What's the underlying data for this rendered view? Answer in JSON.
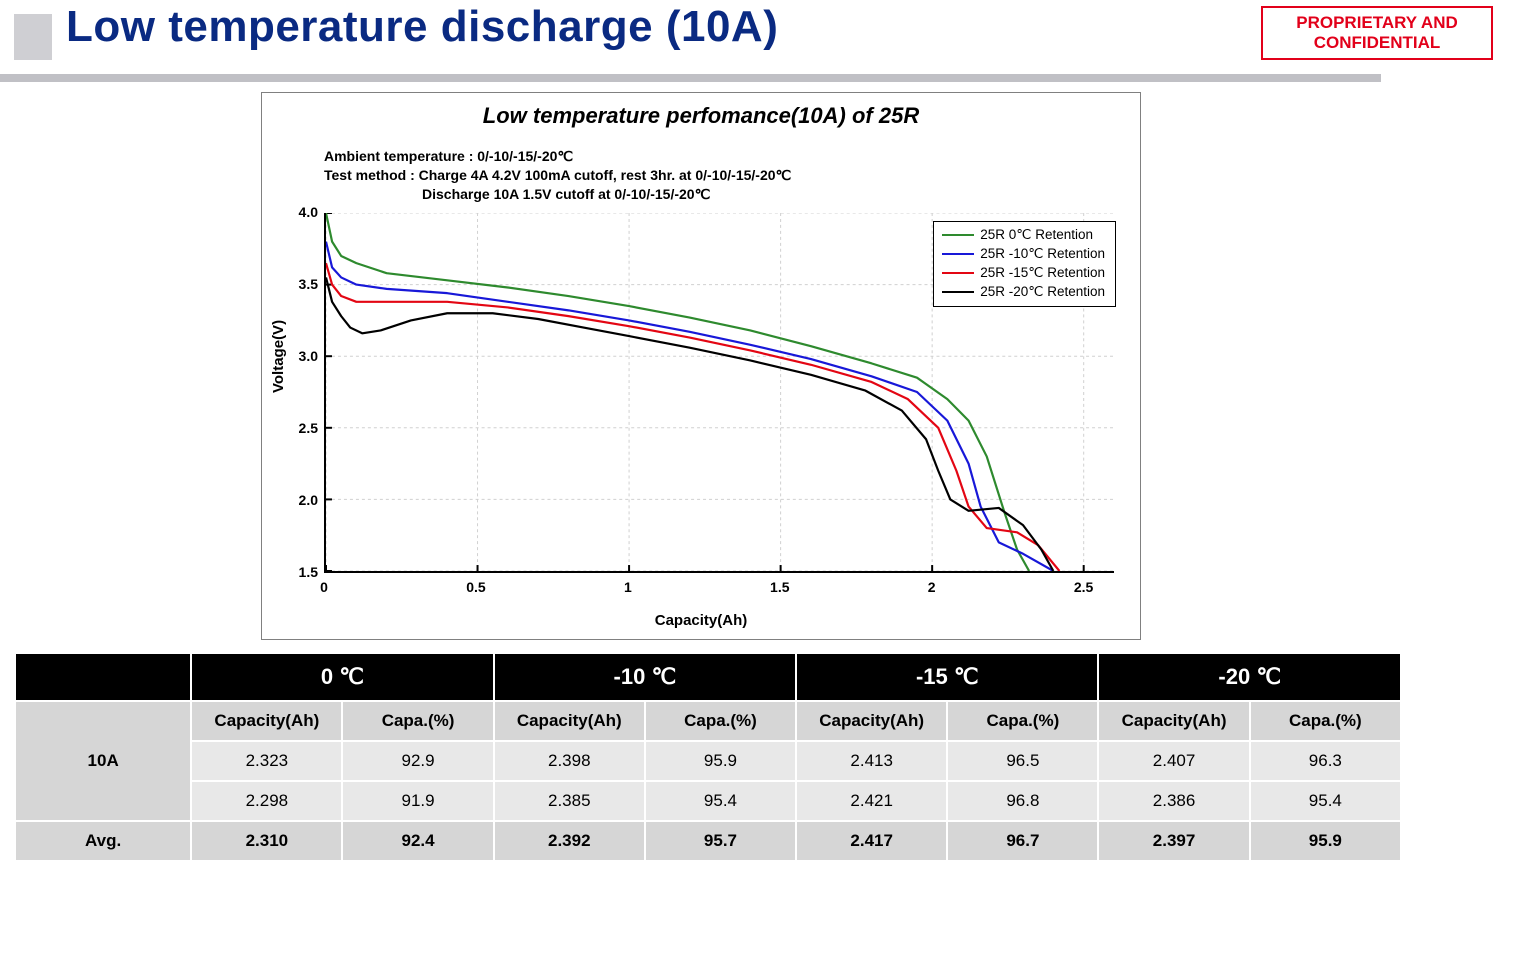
{
  "header": {
    "title": "Low temperature discharge (10A)",
    "confidential": "PROPRIETARY AND CONFIDENTIAL",
    "accent_color": "#0a2a82",
    "confidential_color": "#e2001a"
  },
  "chart": {
    "type": "line",
    "title": "Low temperature perfomance(10A) of 25R",
    "note_line1": "Ambient temperature : 0/-10/-15/-20℃",
    "note_line2": "Test method : Charge 4A 4.2V 100mA cutoff, rest 3hr. at 0/-10/-15/-20℃",
    "note_line3": "Discharge 10A 1.5V cutoff at 0/-10/-15/-20℃",
    "xlabel": "Capacity(Ah)",
    "ylabel": "Voltage(V)",
    "xlim": [
      0,
      2.6
    ],
    "ylim": [
      1.5,
      4.0
    ],
    "xticks": [
      0,
      0.5,
      1,
      1.5,
      2,
      2.5
    ],
    "yticks": [
      1.5,
      2.0,
      2.5,
      3.0,
      3.5,
      4.0
    ],
    "grid_color": "#d0d0d0",
    "axis_color": "#000000",
    "background_color": "#ffffff",
    "line_width": 2.2,
    "title_fontsize": 22,
    "label_fontsize": 15,
    "tick_fontsize": 14,
    "legend_border": "#000000",
    "series": [
      {
        "label": "25R 0℃ Retention",
        "color": "#2e8a2e",
        "points": [
          [
            0.0,
            4.0
          ],
          [
            0.02,
            3.8
          ],
          [
            0.05,
            3.7
          ],
          [
            0.1,
            3.65
          ],
          [
            0.2,
            3.58
          ],
          [
            0.4,
            3.53
          ],
          [
            0.6,
            3.48
          ],
          [
            0.8,
            3.42
          ],
          [
            1.0,
            3.35
          ],
          [
            1.2,
            3.27
          ],
          [
            1.4,
            3.18
          ],
          [
            1.6,
            3.07
          ],
          [
            1.8,
            2.95
          ],
          [
            1.95,
            2.85
          ],
          [
            2.05,
            2.7
          ],
          [
            2.12,
            2.55
          ],
          [
            2.18,
            2.3
          ],
          [
            2.24,
            1.9
          ],
          [
            2.28,
            1.65
          ],
          [
            2.32,
            1.5
          ]
        ]
      },
      {
        "label": "25R -10℃ Retention",
        "color": "#1818d8",
        "points": [
          [
            0.0,
            3.8
          ],
          [
            0.02,
            3.62
          ],
          [
            0.05,
            3.55
          ],
          [
            0.1,
            3.5
          ],
          [
            0.2,
            3.47
          ],
          [
            0.4,
            3.44
          ],
          [
            0.6,
            3.38
          ],
          [
            0.8,
            3.32
          ],
          [
            1.0,
            3.25
          ],
          [
            1.2,
            3.17
          ],
          [
            1.4,
            3.08
          ],
          [
            1.6,
            2.98
          ],
          [
            1.8,
            2.86
          ],
          [
            1.95,
            2.75
          ],
          [
            2.05,
            2.55
          ],
          [
            2.12,
            2.25
          ],
          [
            2.16,
            1.95
          ],
          [
            2.22,
            1.7
          ],
          [
            2.3,
            1.62
          ],
          [
            2.4,
            1.5
          ]
        ]
      },
      {
        "label": "25R -15℃ Retention",
        "color": "#e30613",
        "points": [
          [
            0.0,
            3.65
          ],
          [
            0.02,
            3.5
          ],
          [
            0.05,
            3.42
          ],
          [
            0.1,
            3.38
          ],
          [
            0.2,
            3.38
          ],
          [
            0.4,
            3.38
          ],
          [
            0.6,
            3.34
          ],
          [
            0.8,
            3.28
          ],
          [
            1.0,
            3.21
          ],
          [
            1.2,
            3.13
          ],
          [
            1.4,
            3.04
          ],
          [
            1.6,
            2.94
          ],
          [
            1.8,
            2.82
          ],
          [
            1.92,
            2.7
          ],
          [
            2.02,
            2.5
          ],
          [
            2.08,
            2.2
          ],
          [
            2.12,
            1.95
          ],
          [
            2.18,
            1.8
          ],
          [
            2.28,
            1.77
          ],
          [
            2.35,
            1.68
          ],
          [
            2.42,
            1.5
          ]
        ]
      },
      {
        "label": "25R -20℃ Retention",
        "color": "#000000",
        "points": [
          [
            0.0,
            3.55
          ],
          [
            0.02,
            3.38
          ],
          [
            0.05,
            3.28
          ],
          [
            0.08,
            3.2
          ],
          [
            0.12,
            3.16
          ],
          [
            0.18,
            3.18
          ],
          [
            0.28,
            3.25
          ],
          [
            0.4,
            3.3
          ],
          [
            0.55,
            3.3
          ],
          [
            0.7,
            3.26
          ],
          [
            0.85,
            3.2
          ],
          [
            1.0,
            3.14
          ],
          [
            1.2,
            3.06
          ],
          [
            1.4,
            2.97
          ],
          [
            1.6,
            2.87
          ],
          [
            1.78,
            2.76
          ],
          [
            1.9,
            2.62
          ],
          [
            1.98,
            2.42
          ],
          [
            2.02,
            2.2
          ],
          [
            2.06,
            2.0
          ],
          [
            2.12,
            1.92
          ],
          [
            2.22,
            1.94
          ],
          [
            2.3,
            1.82
          ],
          [
            2.36,
            1.65
          ],
          [
            2.4,
            1.5
          ]
        ]
      }
    ]
  },
  "table": {
    "row_label": "10A",
    "avg_label": "Avg.",
    "temps": [
      "0 ℃",
      "-10 ℃",
      "-15 ℃",
      "-20 ℃"
    ],
    "sub_headers": [
      "Capacity(Ah)",
      "Capa.(%)"
    ],
    "rows": [
      [
        "2.323",
        "92.9",
        "2.398",
        "95.9",
        "2.413",
        "96.5",
        "2.407",
        "96.3"
      ],
      [
        "2.298",
        "91.9",
        "2.385",
        "95.4",
        "2.421",
        "96.8",
        "2.386",
        "95.4"
      ]
    ],
    "avg": [
      "2.310",
      "92.4",
      "2.392",
      "95.7",
      "2.417",
      "96.7",
      "2.397",
      "95.9"
    ],
    "colors": {
      "header_bg": "#000000",
      "header_fg": "#ffffff",
      "row_bg": "#e8e8e8",
      "rowhdr_bg": "#d6d6d6",
      "border": "#ffffff"
    }
  }
}
